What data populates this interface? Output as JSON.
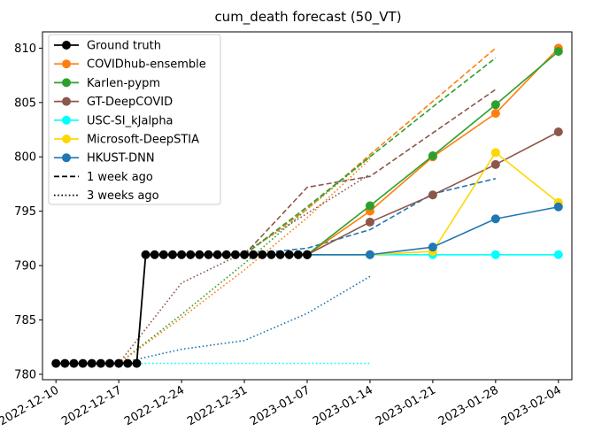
{
  "chart_data": {
    "type": "line",
    "title": "cum_death forecast (50_VT)",
    "xlabel": "",
    "ylabel": "",
    "ylim": [
      779.5,
      811.5
    ],
    "yticks": [
      780,
      785,
      790,
      795,
      800,
      805,
      810
    ],
    "xticks": [
      "2022-12-10",
      "2022-12-17",
      "2022-12-24",
      "2022-12-31",
      "2023-01-07",
      "2023-01-14",
      "2023-01-21",
      "2023-01-28",
      "2023-02-04"
    ],
    "xrange_days": [
      -1.5,
      57.5
    ],
    "legend_position": "top-left",
    "ground_truth": {
      "name": "Ground truth",
      "color": "#000000",
      "x": [
        0,
        1,
        2,
        3,
        4,
        5,
        6,
        7,
        8,
        9,
        10,
        11,
        12,
        13,
        14,
        15,
        16,
        17,
        18,
        19,
        20,
        21,
        22,
        23,
        24,
        25,
        26,
        27,
        28
      ],
      "y": [
        781,
        781,
        781,
        781,
        781,
        781,
        781,
        781,
        781,
        781,
        791,
        791,
        791,
        791,
        791,
        791,
        791,
        791,
        791,
        791,
        791,
        791,
        791,
        791,
        791,
        791,
        791,
        791,
        791
      ]
    },
    "current_forecasts": [
      {
        "name": "COVIDhub-ensemble",
        "color": "#ff7f0e",
        "x": [
          28,
          35,
          42,
          49,
          56
        ],
        "y": [
          791,
          795,
          800,
          804,
          810
        ]
      },
      {
        "name": "Karlen-pypm",
        "color": "#2ca02c",
        "x": [
          28,
          35,
          42,
          49,
          56
        ],
        "y": [
          791,
          795.5,
          800.1,
          804.8,
          809.7
        ]
      },
      {
        "name": "GT-DeepCOVID",
        "color": "#8c564b",
        "x": [
          28,
          35,
          42,
          49,
          56
        ],
        "y": [
          791,
          794,
          796.5,
          799.3,
          802.3
        ]
      },
      {
        "name": "USC-SI_kJalpha",
        "color": "#00ffff",
        "x": [
          28,
          35,
          42,
          49,
          56
        ],
        "y": [
          791,
          791,
          791,
          791,
          791
        ]
      },
      {
        "name": "Microsoft-DeepSTIA",
        "color": "#ffd700",
        "x": [
          28,
          35,
          42,
          49,
          56
        ],
        "y": [
          791,
          791,
          791.3,
          800.4,
          795.8
        ]
      },
      {
        "name": "HKUST-DNN",
        "color": "#1f77b4",
        "x": [
          28,
          35,
          42,
          49,
          56
        ],
        "y": [
          791,
          791,
          791.7,
          794.3,
          795.4
        ]
      }
    ],
    "one_week_ago": [
      {
        "name": "COVIDhub-ensemble",
        "color": "#ff7f0e",
        "x": [
          21,
          28,
          35,
          42,
          49
        ],
        "y": [
          791,
          795.2,
          800.2,
          805.1,
          810
        ]
      },
      {
        "name": "Karlen-pypm",
        "color": "#2ca02c",
        "x": [
          21,
          28,
          35,
          42,
          49
        ],
        "y": [
          791,
          795.4,
          800,
          804.6,
          809.1
        ]
      },
      {
        "name": "GT-DeepCOVID",
        "color": "#8c564b",
        "x": [
          21,
          28,
          35,
          42,
          49
        ],
        "y": [
          791,
          797.2,
          798.2,
          802.2,
          806.2
        ]
      },
      {
        "name": "HKUST-DNN",
        "color": "#1f77b4",
        "x": [
          21,
          28,
          35,
          42,
          49
        ],
        "y": [
          791,
          791.6,
          793.3,
          796.6,
          798
        ]
      }
    ],
    "three_weeks_ago": [
      {
        "name": "GT-DeepCOVID",
        "color": "#8c564b",
        "x": [
          7,
          14,
          21,
          28,
          35
        ],
        "y": [
          781,
          788.4,
          791.2,
          794.8,
          798.4
        ]
      },
      {
        "name": "Karlen-pypm",
        "color": "#2ca02c",
        "x": [
          7,
          14,
          21,
          28,
          35
        ],
        "y": [
          781,
          785.5,
          790.2,
          795.2,
          800
        ]
      },
      {
        "name": "COVIDhub-ensemble",
        "color": "#ff7f0e",
        "x": [
          7,
          14,
          21,
          28,
          35
        ],
        "y": [
          781,
          785.2,
          789.6,
          794.4,
          799.8
        ]
      },
      {
        "name": "HKUST-DNN",
        "color": "#1f77b4",
        "x": [
          7,
          14,
          21,
          28,
          35
        ],
        "y": [
          781,
          782.3,
          783.1,
          785.6,
          789
        ]
      },
      {
        "name": "USC-SI_kJalpha",
        "color": "#00ffff",
        "x": [
          7,
          14,
          21,
          28,
          35
        ],
        "y": [
          781,
          781,
          781,
          781,
          781
        ]
      }
    ],
    "legend": [
      {
        "label": "Ground truth",
        "color": "#000000",
        "style": "marker"
      },
      {
        "label": "COVIDhub-ensemble",
        "color": "#ff7f0e",
        "style": "marker"
      },
      {
        "label": "Karlen-pypm",
        "color": "#2ca02c",
        "style": "marker"
      },
      {
        "label": "GT-DeepCOVID",
        "color": "#8c564b",
        "style": "marker"
      },
      {
        "label": "USC-SI_kJalpha",
        "color": "#00ffff",
        "style": "marker"
      },
      {
        "label": "Microsoft-DeepSTIA",
        "color": "#ffd700",
        "style": "marker"
      },
      {
        "label": "HKUST-DNN",
        "color": "#1f77b4",
        "style": "marker"
      },
      {
        "label": "1 week ago",
        "color": "#000000",
        "style": "dashed"
      },
      {
        "label": "3 weeks ago",
        "color": "#000000",
        "style": "dotted"
      }
    ]
  }
}
